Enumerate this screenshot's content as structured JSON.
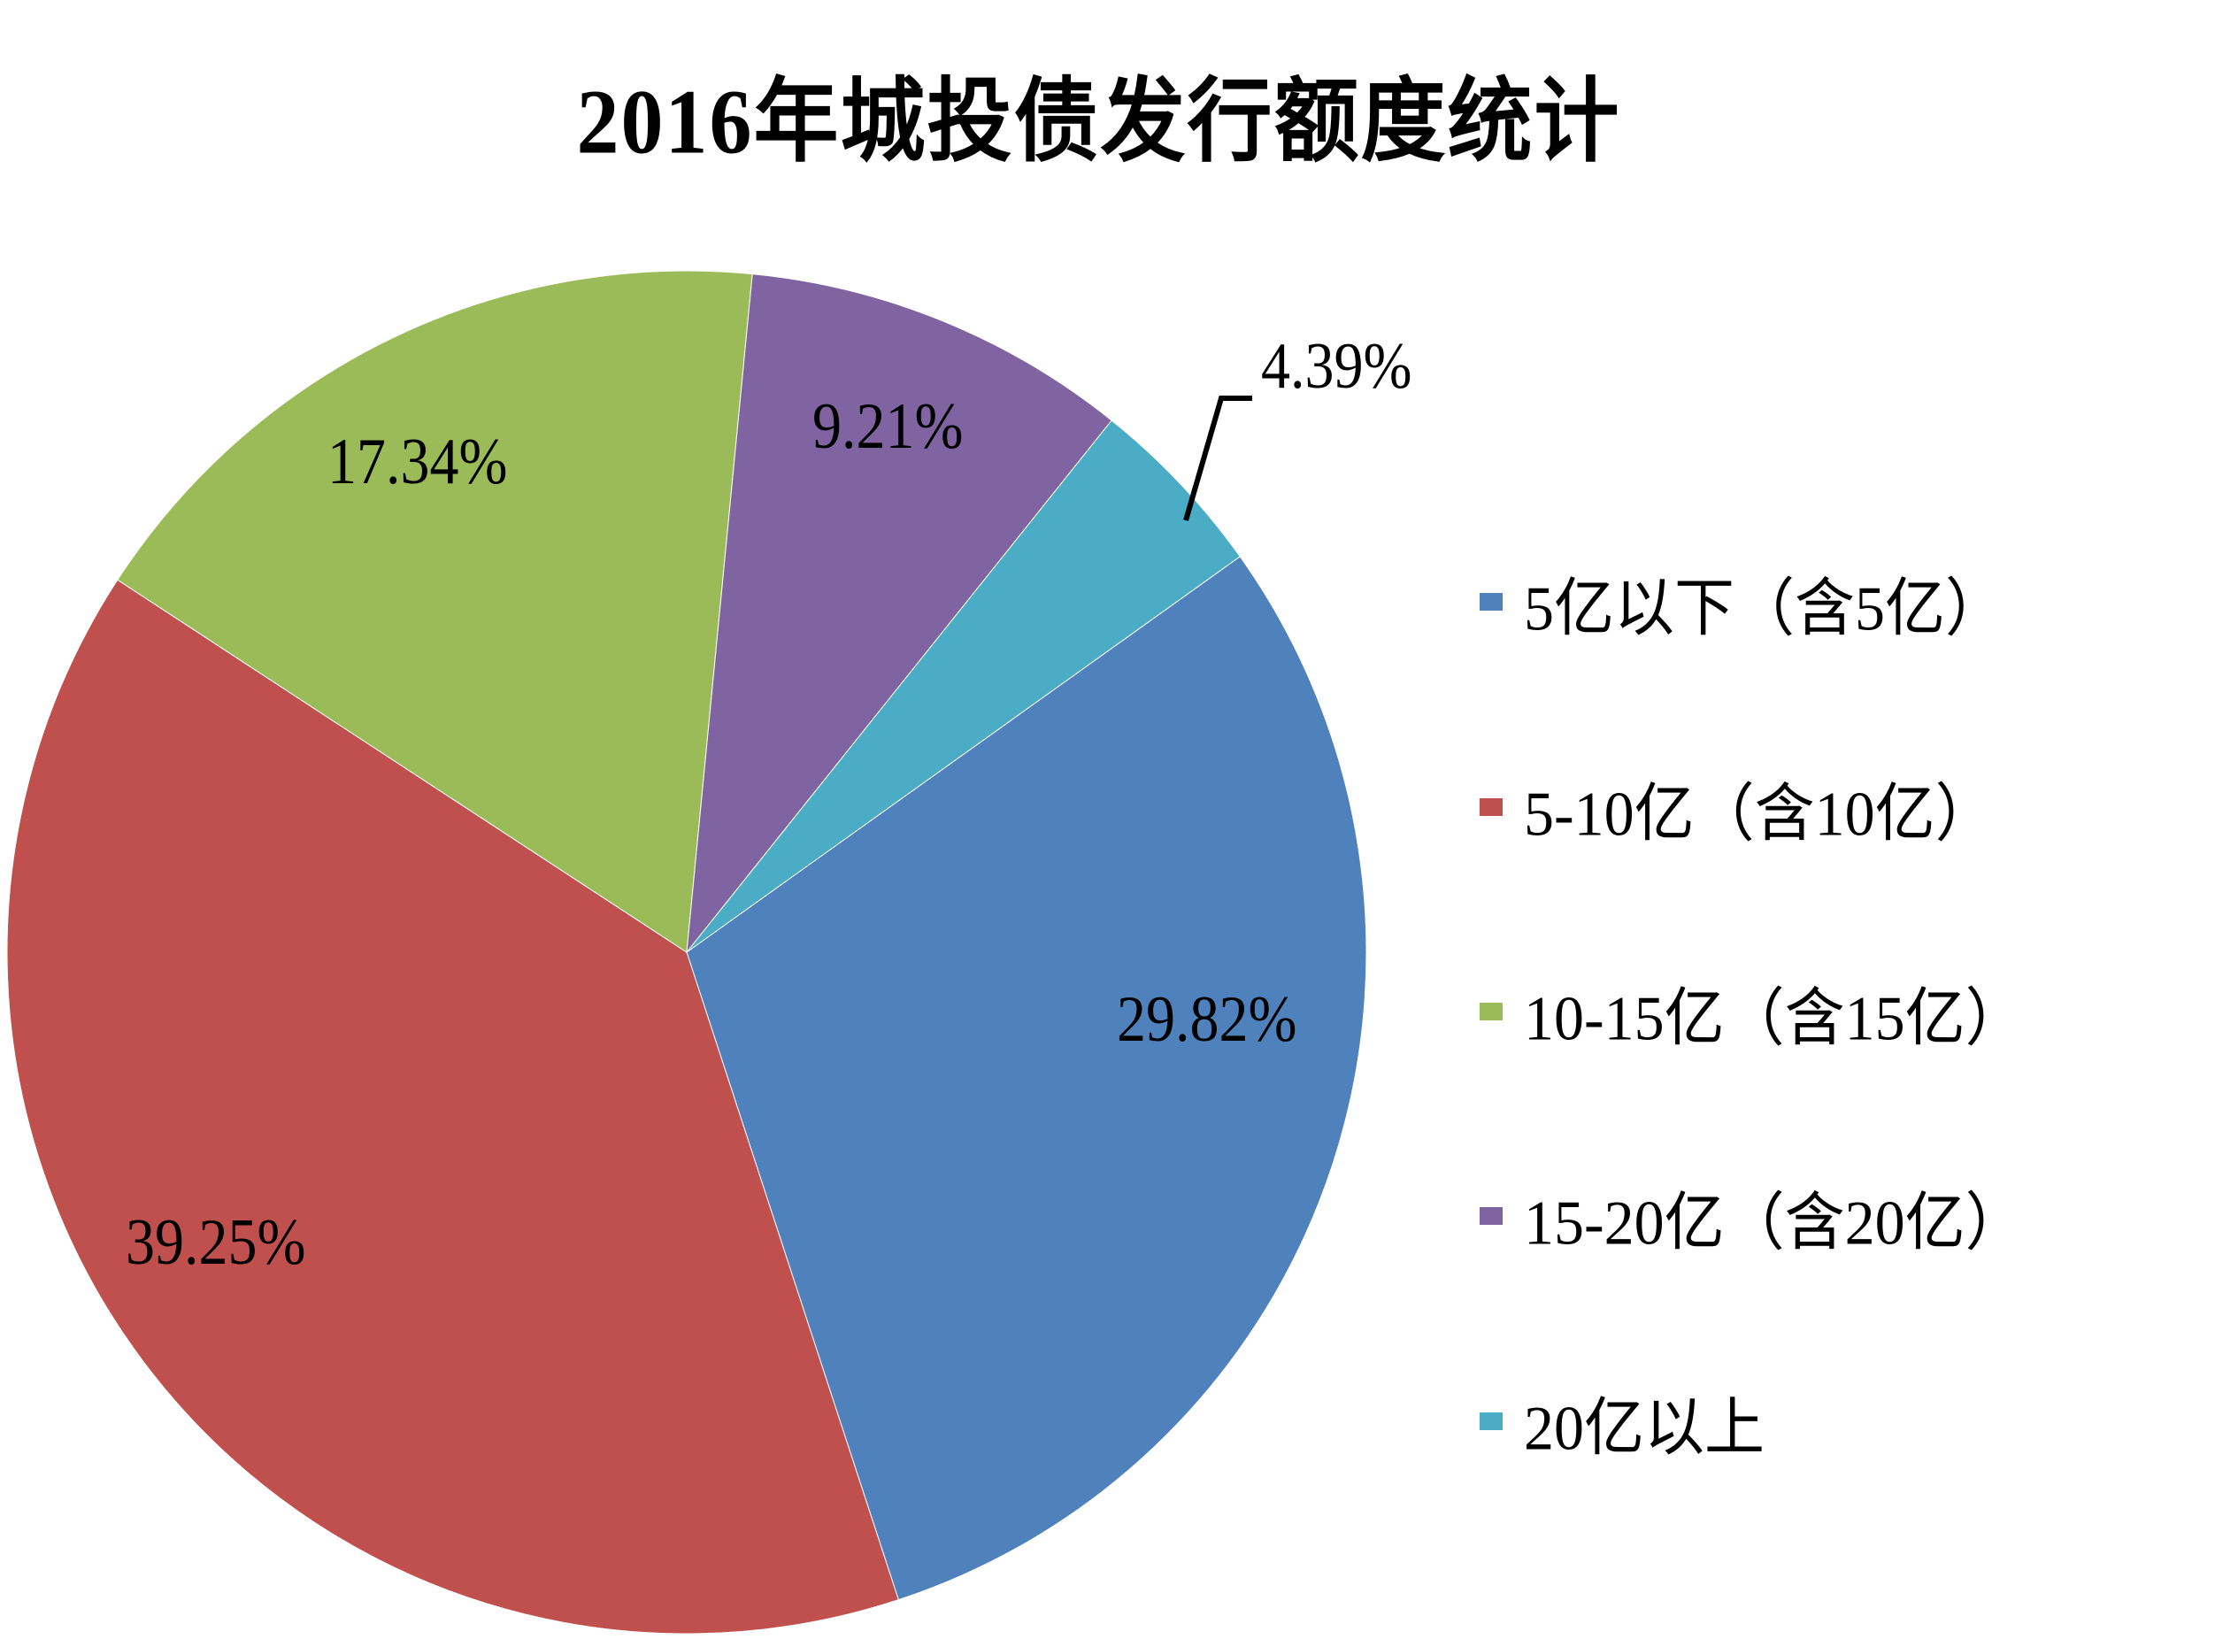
{
  "chart_data": {
    "type": "pie",
    "title": "2016年城投债发行额度统计",
    "categories": [
      "5亿以下（含5亿）",
      "5-10亿（含10亿）",
      "10-15亿（含15亿）",
      "15-20亿（含20亿）",
      "20亿以上"
    ],
    "values": [
      29.82,
      39.25,
      17.34,
      9.21,
      4.39
    ],
    "labels": [
      "29.82%",
      "39.25%",
      "17.34%",
      "9.21%",
      "4.39%"
    ],
    "colors": [
      "#4F81BD",
      "#C0504D",
      "#9BBB59",
      "#8064A2",
      "#4BACC6"
    ],
    "legend_position": "right",
    "unit": "%"
  },
  "title": "2016年城投债发行额度统计",
  "legend": {
    "items": [
      {
        "label": "5亿以下（含5亿）",
        "color": "#4F81BD"
      },
      {
        "label": "5-10亿（含10亿）",
        "color": "#C0504D"
      },
      {
        "label": "10-15亿（含15亿）",
        "color": "#9BBB59"
      },
      {
        "label": "15-20亿（含20亿）",
        "color": "#8064A2"
      },
      {
        "label": "20亿以上",
        "color": "#4BACC6"
      }
    ]
  },
  "data_labels": {
    "blue": "29.82%",
    "red": "39.25%",
    "green": "17.34%",
    "purple": "9.21%",
    "teal": "4.39%"
  }
}
